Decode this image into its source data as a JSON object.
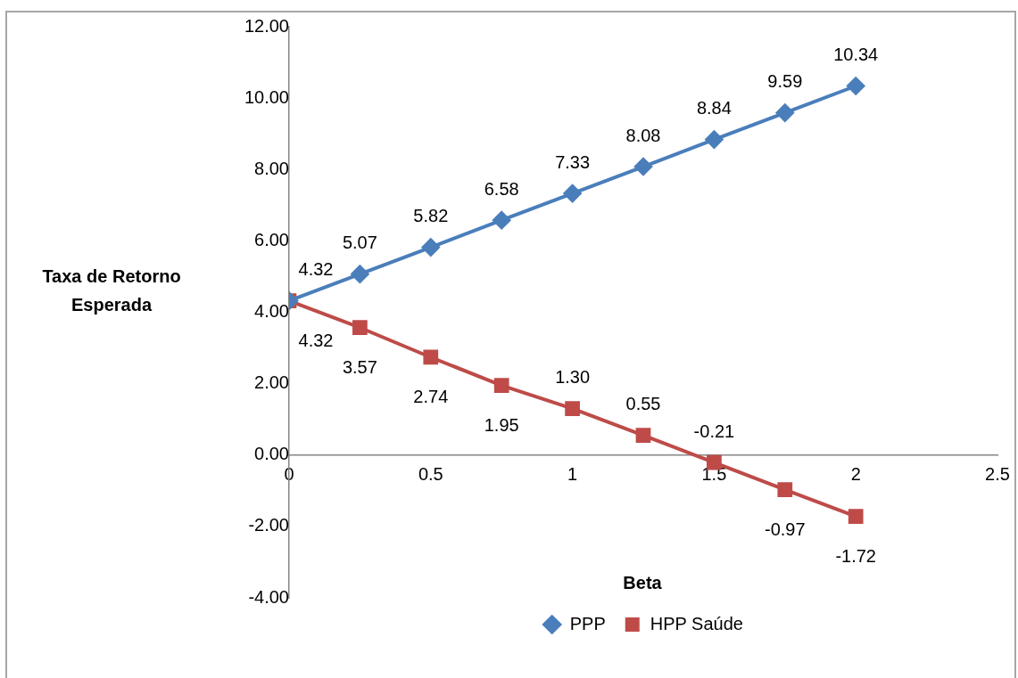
{
  "chart_data": {
    "type": "line",
    "xlabel": "Beta",
    "ylabel": "Taxa de Retorno Esperada",
    "x": [
      0,
      0.25,
      0.5,
      0.75,
      1,
      1.25,
      1.5,
      1.75,
      2
    ],
    "series": [
      {
        "name": "PPP",
        "color": "#4a7ebb",
        "marker": "diamond",
        "values": [
          4.32,
          5.07,
          5.82,
          6.58,
          7.33,
          8.08,
          8.84,
          9.59,
          10.34
        ],
        "value_labels": [
          "4.32",
          "5.07",
          "5.82",
          "6.58",
          "7.33",
          "8.08",
          "8.84",
          "9.59",
          "10.34"
        ]
      },
      {
        "name": "HPP Saúde",
        "color": "#be4b48",
        "marker": "square",
        "values": [
          4.32,
          3.57,
          2.74,
          1.95,
          1.3,
          0.55,
          -0.21,
          -0.97,
          -1.72
        ],
        "value_labels": [
          "4.32",
          "3.57",
          "2.74",
          "1.95",
          "1.30",
          "0.55",
          "-0.21",
          "-0.97",
          "-1.72"
        ]
      }
    ],
    "xlim": [
      0,
      2.5
    ],
    "xticks": [
      0,
      0.5,
      1,
      1.5,
      2,
      2.5
    ],
    "ylim": [
      -4,
      12
    ],
    "yticks": [
      {
        "value": -4,
        "label": "-4.00"
      },
      {
        "value": -2,
        "label": "-2.00"
      },
      {
        "value": 0,
        "label": "0.00"
      },
      {
        "value": 2,
        "label": "2.00"
      },
      {
        "value": 4,
        "label": "4.00"
      },
      {
        "value": 6,
        "label": "6.00"
      },
      {
        "value": 8,
        "label": "8.00"
      },
      {
        "value": 10,
        "label": "10.00"
      },
      {
        "value": 12,
        "label": "12.00"
      }
    ],
    "grid": false,
    "legend": "bottom",
    "line_style": "solid"
  }
}
